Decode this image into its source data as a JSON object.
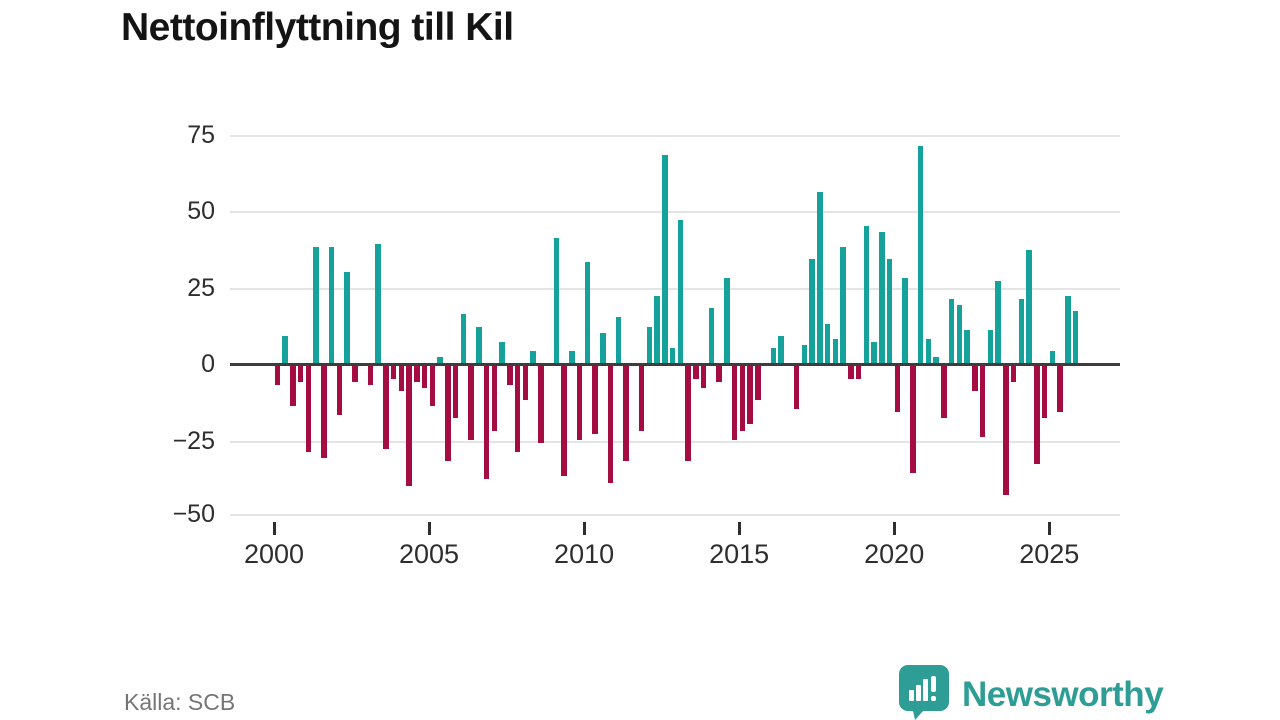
{
  "title": "Nettoinflyttning till Kil",
  "footer": {
    "source": "Källa: SCB",
    "brand": "Newsworthy"
  },
  "colors": {
    "positive": "#14a29a",
    "negative": "#a50c42",
    "axis": "#3d3d3d",
    "grid": "#e4e4e4",
    "tick_text": "#2e2e2e",
    "source_text": "#757575",
    "brand": "#2e9d95"
  },
  "chart_data": {
    "type": "bar",
    "title": "Nettoinflyttning till Kil",
    "xlabel": "",
    "ylabel": "",
    "grid": true,
    "legend": false,
    "frequency": "quarterly",
    "start": "2000Q1",
    "x_axis": {
      "tick_labels": [
        "2000",
        "2005",
        "2010",
        "2015",
        "2020",
        "2025"
      ]
    },
    "y_axis": {
      "tick_values": [
        75,
        50,
        25,
        0,
        -25,
        -50
      ],
      "tick_labels": [
        "75",
        "50",
        "25",
        "0",
        "−25",
        "−50"
      ],
      "ylim": [
        -50,
        75
      ]
    },
    "series": [
      {
        "name": "Nettoinflyttning",
        "years": [
          {
            "year": 2000,
            "values": [
              -6,
              9,
              -13,
              -5
            ]
          },
          {
            "year": 2001,
            "values": [
              -28,
              38,
              -30,
              38
            ]
          },
          {
            "year": 2002,
            "values": [
              -16,
              30,
              -5,
              0
            ]
          },
          {
            "year": 2003,
            "values": [
              -6,
              39,
              -27,
              -4
            ]
          },
          {
            "year": 2004,
            "values": [
              -8,
              -39,
              -5,
              -7
            ]
          },
          {
            "year": 2005,
            "values": [
              -13,
              2,
              -31,
              -17
            ]
          },
          {
            "year": 2006,
            "values": [
              16,
              -24,
              12,
              -37
            ]
          },
          {
            "year": 2007,
            "values": [
              -21,
              7,
              -6,
              -28
            ]
          },
          {
            "year": 2008,
            "values": [
              -11,
              4,
              -25,
              0
            ]
          },
          {
            "year": 2009,
            "values": [
              41,
              -36,
              4,
              -24
            ]
          },
          {
            "year": 2010,
            "values": [
              33,
              -22,
              10,
              -38
            ]
          },
          {
            "year": 2011,
            "values": [
              15,
              -31,
              0,
              -21
            ]
          },
          {
            "year": 2012,
            "values": [
              12,
              22,
              68,
              5
            ]
          },
          {
            "year": 2013,
            "values": [
              47,
              -31,
              -4,
              -7
            ]
          },
          {
            "year": 2014,
            "values": [
              18,
              -5,
              28,
              -24
            ]
          },
          {
            "year": 2015,
            "values": [
              -21,
              -19,
              -11,
              0
            ]
          },
          {
            "year": 2016,
            "values": [
              5,
              9,
              0,
              -14
            ]
          },
          {
            "year": 2017,
            "values": [
              6,
              34,
              56,
              13
            ]
          },
          {
            "year": 2018,
            "values": [
              8,
              38,
              -4,
              -4
            ]
          },
          {
            "year": 2019,
            "values": [
              45,
              7,
              43,
              34
            ]
          },
          {
            "year": 2020,
            "values": [
              -15,
              28,
              -35,
              71
            ]
          },
          {
            "year": 2021,
            "values": [
              8,
              2,
              -17,
              21
            ]
          },
          {
            "year": 2022,
            "values": [
              19,
              11,
              -8,
              -23
            ]
          },
          {
            "year": 2023,
            "values": [
              11,
              27,
              -42,
              -5
            ]
          },
          {
            "year": 2024,
            "values": [
              21,
              37,
              -32,
              -17
            ]
          },
          {
            "year": 2025,
            "values": [
              4,
              -15,
              22,
              17
            ]
          }
        ]
      }
    ]
  }
}
